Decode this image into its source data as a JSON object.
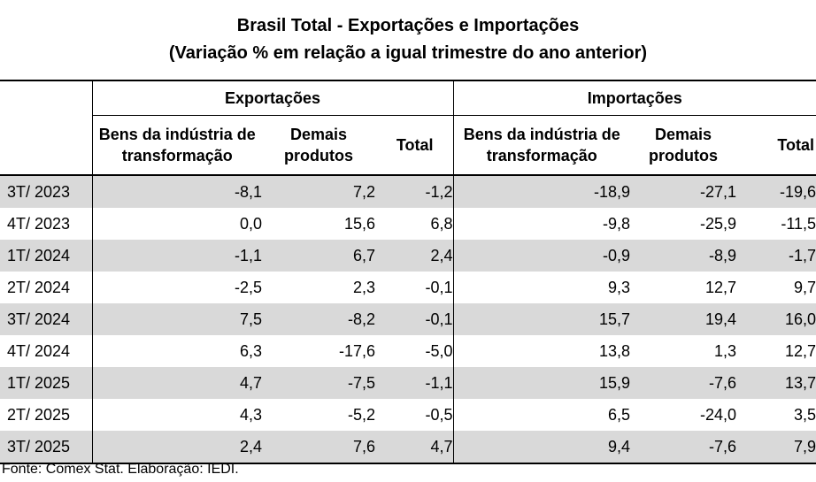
{
  "title": {
    "line1": "Brasil Total - Exportações e Importações",
    "line2": "(Variação % em relação a igual trimestre do ano anterior)"
  },
  "groups": {
    "exports": "Exportações",
    "imports": "Importações"
  },
  "columns": {
    "industry_line1": "Bens da indústria de",
    "industry_line2": "transformação",
    "other_line1": "Demais",
    "other_line2": "produtos",
    "total": "Total"
  },
  "rows": [
    {
      "period": "3T/ 2023",
      "exp_ind": "-8,1",
      "exp_other": "7,2",
      "exp_total": "-1,2",
      "imp_ind": "-18,9",
      "imp_other": "-27,1",
      "imp_total": "-19,6"
    },
    {
      "period": "4T/ 2023",
      "exp_ind": "0,0",
      "exp_other": "15,6",
      "exp_total": "6,8",
      "imp_ind": "-9,8",
      "imp_other": "-25,9",
      "imp_total": "-11,5"
    },
    {
      "period": "1T/ 2024",
      "exp_ind": "-1,1",
      "exp_other": "6,7",
      "exp_total": "2,4",
      "imp_ind": "-0,9",
      "imp_other": "-8,9",
      "imp_total": "-1,7"
    },
    {
      "period": "2T/ 2024",
      "exp_ind": "-2,5",
      "exp_other": "2,3",
      "exp_total": "-0,1",
      "imp_ind": "9,3",
      "imp_other": "12,7",
      "imp_total": "9,7"
    },
    {
      "period": "3T/ 2024",
      "exp_ind": "7,5",
      "exp_other": "-8,2",
      "exp_total": "-0,1",
      "imp_ind": "15,7",
      "imp_other": "19,4",
      "imp_total": "16,0"
    },
    {
      "period": "4T/ 2024",
      "exp_ind": "6,3",
      "exp_other": "-17,6",
      "exp_total": "-5,0",
      "imp_ind": "13,8",
      "imp_other": "1,3",
      "imp_total": "12,7"
    },
    {
      "period": "1T/ 2025",
      "exp_ind": "4,7",
      "exp_other": "-7,5",
      "exp_total": "-1,1",
      "imp_ind": "15,9",
      "imp_other": "-7,6",
      "imp_total": "13,7"
    },
    {
      "period": "2T/ 2025",
      "exp_ind": "4,3",
      "exp_other": "-5,2",
      "exp_total": "-0,5",
      "imp_ind": "6,5",
      "imp_other": "-24,0",
      "imp_total": "3,5"
    },
    {
      "period": "3T/ 2025",
      "exp_ind": "2,4",
      "exp_other": "7,6",
      "exp_total": "4,7",
      "imp_ind": "9,4",
      "imp_other": "-7,6",
      "imp_total": "7,9"
    }
  ],
  "shade_color": "#d9d9d9",
  "source": "Fonte: Comex Stat. Elaboração: IEDI."
}
